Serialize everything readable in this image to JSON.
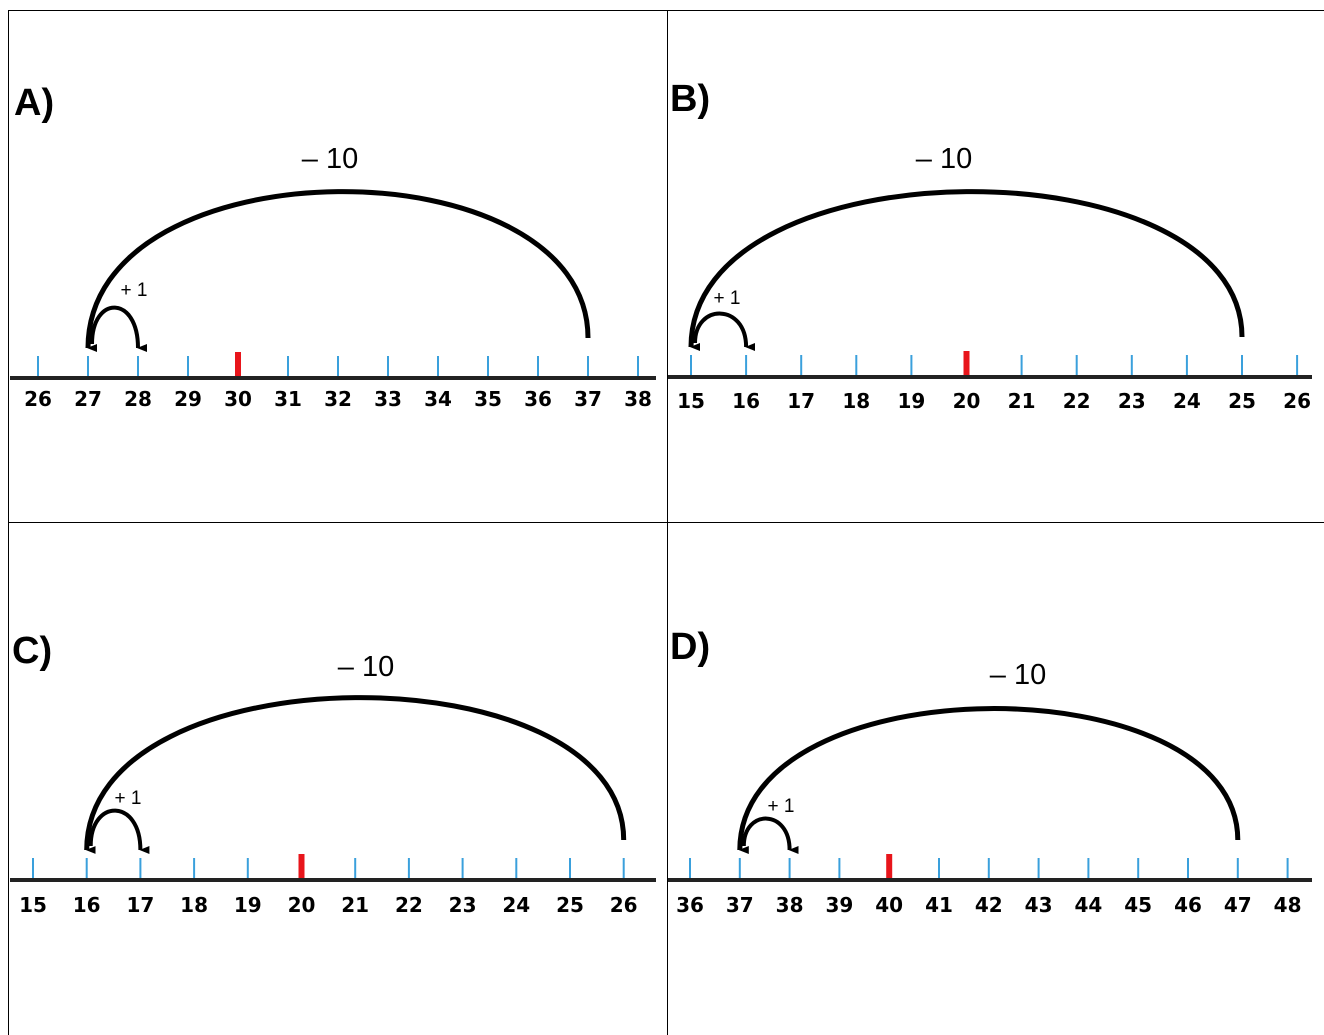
{
  "panels": [
    {
      "id": "a",
      "label": "A)",
      "numbers": [
        "26",
        "27",
        "28",
        "29",
        "30",
        "31",
        "32",
        "33",
        "34",
        "35",
        "36",
        "37",
        "38"
      ],
      "highlight": "30",
      "big_jump_label": "– 10",
      "small_jump_label": "+ 1",
      "big_jump": {
        "from": "37",
        "to": "27"
      },
      "small_jump": {
        "from": "27",
        "to": "28"
      }
    },
    {
      "id": "b",
      "label": "B)",
      "numbers": [
        "15",
        "16",
        "17",
        "18",
        "19",
        "20",
        "21",
        "22",
        "23",
        "24",
        "25",
        "26"
      ],
      "highlight": "20",
      "big_jump_label": "– 10",
      "small_jump_label": "+ 1",
      "big_jump": {
        "from": "25",
        "to": "15"
      },
      "small_jump": {
        "from": "15",
        "to": "16"
      }
    },
    {
      "id": "c",
      "label": "C)",
      "numbers": [
        "15",
        "16",
        "17",
        "18",
        "19",
        "20",
        "21",
        "22",
        "23",
        "24",
        "25",
        "26"
      ],
      "highlight": "20",
      "big_jump_label": "– 10",
      "small_jump_label": "+ 1",
      "big_jump": {
        "from": "26",
        "to": "16"
      },
      "small_jump": {
        "from": "16",
        "to": "17"
      }
    },
    {
      "id": "d",
      "label": "D)",
      "numbers": [
        "36",
        "37",
        "38",
        "39",
        "40",
        "41",
        "42",
        "43",
        "44",
        "45",
        "46",
        "47",
        "48"
      ],
      "highlight": "40",
      "big_jump_label": "– 10",
      "small_jump_label": "+ 1",
      "big_jump": {
        "from": "47",
        "to": "37"
      },
      "small_jump": {
        "from": "37",
        "to": "38"
      }
    }
  ],
  "colors": {
    "tick": "#3aa0dc",
    "highlight_tick": "#e8151b",
    "axis": "#222222",
    "arrow": "#000000"
  }
}
